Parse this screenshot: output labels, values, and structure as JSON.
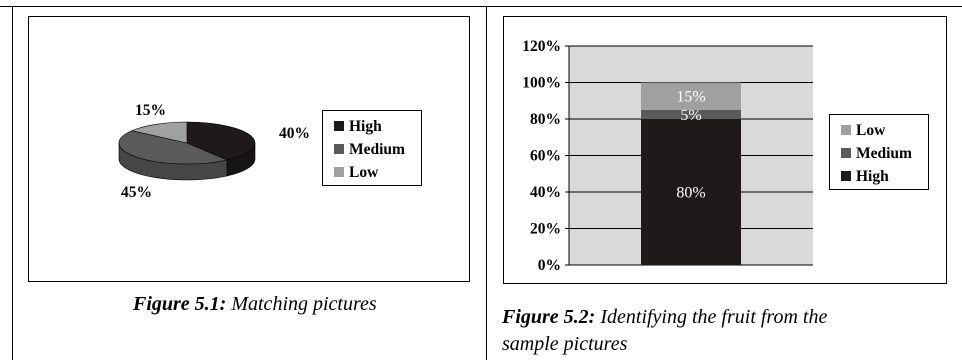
{
  "colors": {
    "high": "#1e1a1a",
    "medium": "#5a5a5a",
    "low": "#a0a0a0",
    "plot_bg": "#d9d9d9"
  },
  "figures": [
    {
      "label": "Figure 5.1:",
      "caption": "Matching pictures"
    },
    {
      "label": "Figure 5.2:",
      "caption_line1": "Identifying the fruit from the",
      "caption_line2": "sample pictures"
    }
  ],
  "chart_data": [
    {
      "type": "pie",
      "title": "",
      "style": "3d-pie",
      "legend_position": "right",
      "categories": [
        "High",
        "Medium",
        "Low"
      ],
      "values": [
        40,
        45,
        15
      ],
      "data_labels": [
        "40%",
        "45%",
        "15%"
      ]
    },
    {
      "type": "bar",
      "title": "",
      "style": "stacked-100",
      "legend_position": "right",
      "grid": true,
      "categories": [
        ""
      ],
      "ylim": [
        0,
        120
      ],
      "y_ticks": [
        "0%",
        "20%",
        "40%",
        "60%",
        "80%",
        "100%",
        "120%"
      ],
      "series": [
        {
          "name": "High",
          "values": [
            80
          ],
          "label": "80%"
        },
        {
          "name": "Medium",
          "values": [
            5
          ],
          "label": "5%"
        },
        {
          "name": "Low",
          "values": [
            15
          ],
          "label": "15%"
        }
      ],
      "legend_order": [
        "Low",
        "Medium",
        "High"
      ]
    }
  ]
}
